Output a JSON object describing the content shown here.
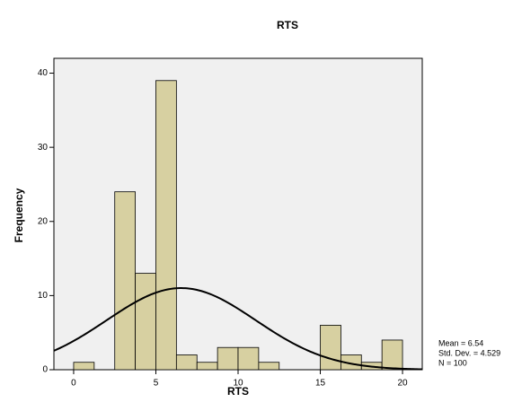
{
  "chart_data": {
    "type": "histogram",
    "title": "RTS",
    "x_label": "RTS",
    "y_label": "Frequency",
    "bins": [
      0,
      1.25,
      2.5,
      3.75,
      5,
      6.25,
      7.5,
      8.75,
      10,
      11.25,
      12.5,
      13.75,
      15,
      16.25,
      17.5,
      18.75,
      20
    ],
    "values": [
      1,
      0,
      24,
      13,
      39,
      2,
      1,
      3,
      3,
      1,
      0,
      0,
      6,
      2,
      1,
      4
    ],
    "color": "#d7d0a1",
    "xlim": [
      -1.2,
      21.2
    ],
    "xticks": [
      0,
      5,
      10,
      15,
      20
    ],
    "ylim": [
      0,
      42
    ],
    "yticks": [
      0,
      10,
      20,
      30,
      40
    ],
    "normal_curve": {
      "mean": 6.54,
      "std_dev": 4.529,
      "n": 100,
      "labels": [
        "Mean = 6.54",
        "Std. Dev. = 4.529",
        "N = 100"
      ]
    }
  }
}
